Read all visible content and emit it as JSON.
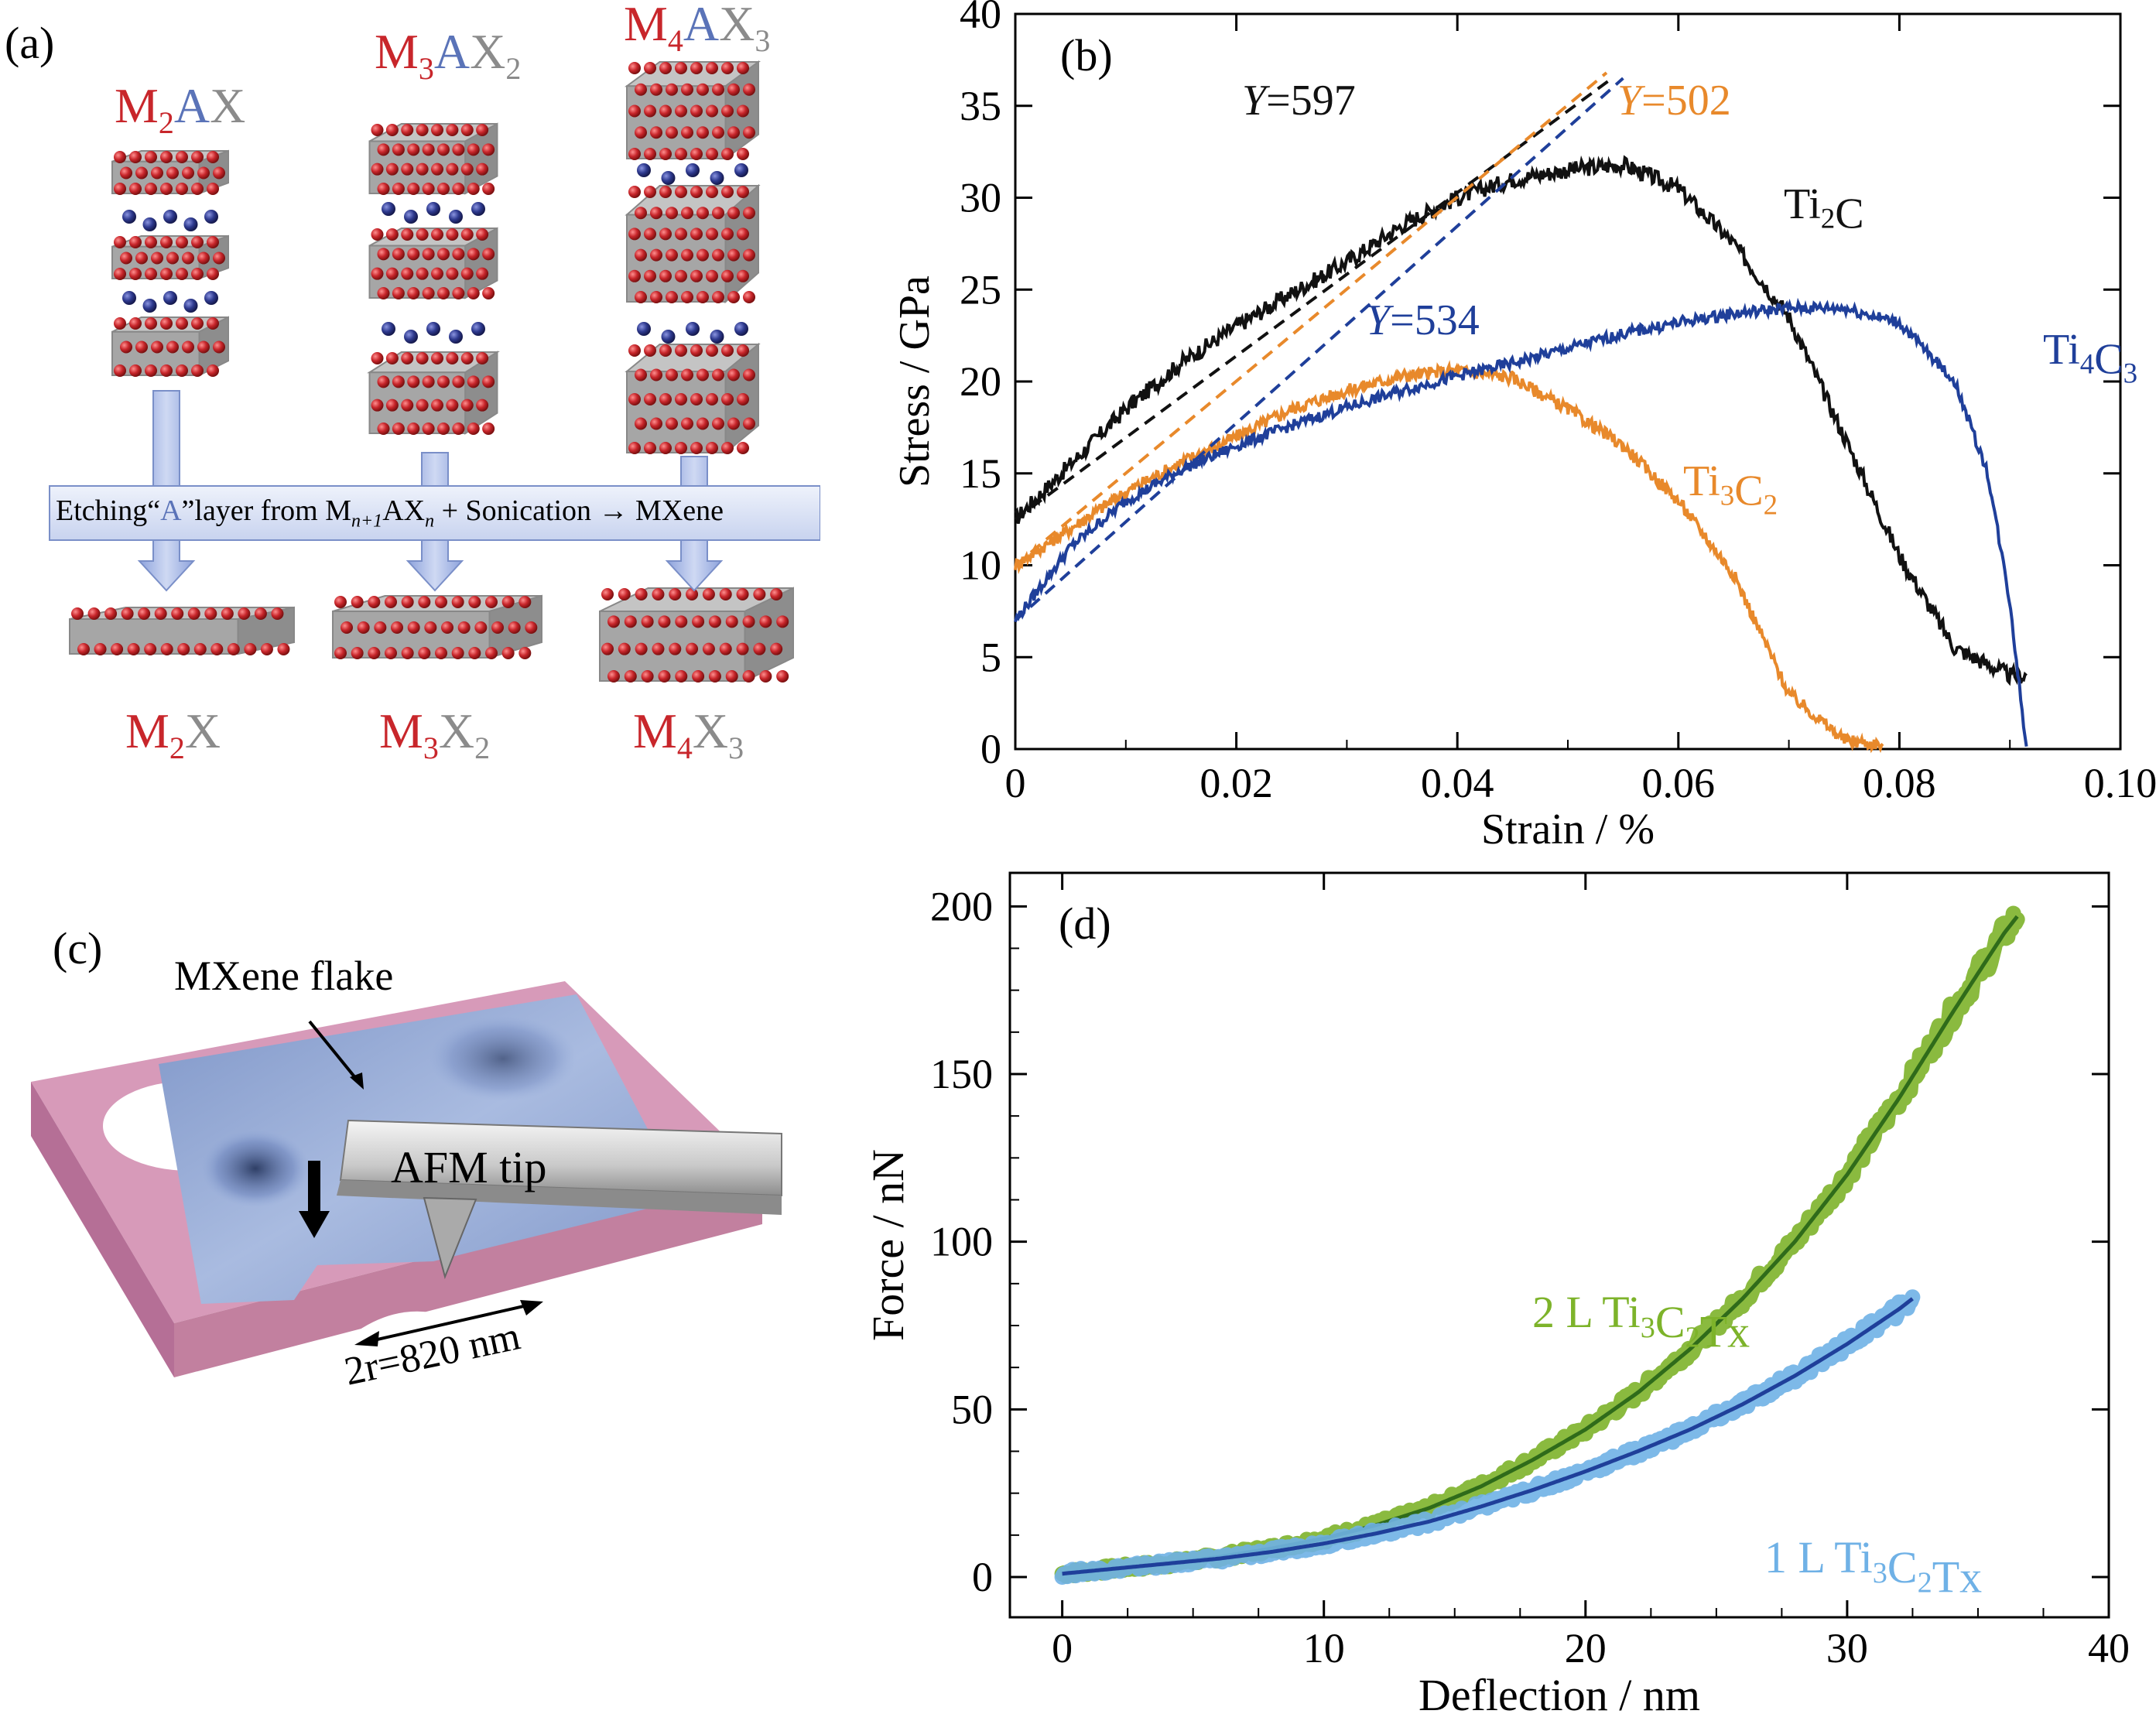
{
  "colors": {
    "atom_red": "#c8262b",
    "atom_blue": "#2e3a8f",
    "block_gray": "#9a9a9a",
    "arrow_fill": "#aabbe6",
    "black_series": "#111111",
    "orange_series": "#e8892b",
    "blue_series": "#1f3f9a",
    "green_series": "#7db32a",
    "lightblue_series": "#6fb1e6",
    "substrate_pink": "#d79ab9",
    "flake_blue": "#8ea6d6"
  },
  "panel_a": {
    "label": "(a)",
    "max_phases": [
      {
        "m": "M",
        "m_sub": "2",
        "a": "A",
        "x": "X",
        "x_sub": ""
      },
      {
        "m": "M",
        "m_sub": "3",
        "a": "A",
        "x": "X",
        "x_sub": "2"
      },
      {
        "m": "M",
        "m_sub": "4",
        "a": "A",
        "x": "X",
        "x_sub": "3"
      }
    ],
    "mxenes": [
      {
        "m": "M",
        "m_sub": "2",
        "x": "X",
        "x_sub": ""
      },
      {
        "m": "M",
        "m_sub": "3",
        "x": "X",
        "x_sub": "2"
      },
      {
        "m": "M",
        "m_sub": "4",
        "x": "X",
        "x_sub": "3"
      }
    ],
    "process": {
      "prefix": "Etching“",
      "a_letter": "A",
      "middle": "”layer from M",
      "sub_n1": "n+1",
      "ax": "AX",
      "sub_n": "n",
      "suffix": " + Sonication → MXene"
    }
  },
  "panel_b": {
    "label": "(b)",
    "annotations": {
      "black_y": "Y=597",
      "orange_y": "Y=502",
      "blue_y": "Y=534",
      "ti2c": "Ti2C",
      "ti3c2": "Ti3C2",
      "ti4c3": "Ti4C3"
    }
  },
  "panel_c": {
    "label": "(c)",
    "flake_label": "MXene flake",
    "tip_label": "AFM tip",
    "diameter_label": "2r=820 nm"
  },
  "panel_d": {
    "label": "(d)",
    "annotations": {
      "two_layer": "2 L Ti3C2Tx",
      "one_layer": "1 L Ti3C2Tx"
    }
  },
  "chart_data": [
    {
      "type": "line",
      "panel": "b",
      "xlabel": "Strain / %",
      "ylabel": "Stress / GPa",
      "xlim": [
        0,
        0.1
      ],
      "ylim": [
        0,
        40
      ],
      "xticks": [
        0,
        0.02,
        0.04,
        0.06,
        0.08,
        0.1
      ],
      "xtick_labels": [
        "0",
        "0.02",
        "0.04",
        "0.06",
        "0.08",
        "0.10"
      ],
      "yticks": [
        0,
        5,
        10,
        15,
        20,
        25,
        30,
        35,
        40
      ],
      "series": [
        {
          "name": "Ti2C",
          "color": "#111111",
          "noise": 0.45,
          "x": [
            0,
            0.005,
            0.01,
            0.015,
            0.02,
            0.025,
            0.03,
            0.035,
            0.04,
            0.045,
            0.05,
            0.055,
            0.06,
            0.065,
            0.07,
            0.075,
            0.08,
            0.085,
            0.09,
            0.0915
          ],
          "y": [
            12.5,
            15.5,
            18.5,
            21.0,
            23.0,
            24.8,
            26.5,
            28.5,
            30.0,
            31.0,
            31.5,
            31.8,
            30.5,
            27.5,
            23.5,
            17.0,
            10.5,
            5.5,
            4.0,
            4.0
          ]
        },
        {
          "name": "Ti3C2",
          "color": "#e8892b",
          "noise": 0.35,
          "x": [
            0,
            0.005,
            0.01,
            0.015,
            0.02,
            0.025,
            0.03,
            0.035,
            0.04,
            0.045,
            0.05,
            0.055,
            0.06,
            0.065,
            0.07,
            0.075,
            0.0785
          ],
          "y": [
            10.0,
            12.0,
            14.0,
            15.6,
            17.0,
            18.5,
            19.5,
            20.3,
            20.6,
            20.2,
            18.5,
            16.5,
            13.5,
            9.5,
            3.0,
            0.5,
            0.2
          ]
        },
        {
          "name": "Ti4C3",
          "color": "#1f3f9a",
          "noise": 0.3,
          "x": [
            0,
            0.005,
            0.01,
            0.015,
            0.02,
            0.025,
            0.03,
            0.035,
            0.04,
            0.045,
            0.05,
            0.055,
            0.06,
            0.065,
            0.07,
            0.075,
            0.08,
            0.085,
            0.088,
            0.09,
            0.0915
          ],
          "y": [
            7.0,
            11.0,
            13.5,
            15.2,
            16.5,
            17.6,
            18.6,
            19.5,
            20.3,
            21.0,
            21.8,
            22.6,
            23.2,
            23.7,
            24.0,
            24.0,
            23.2,
            20.0,
            15.0,
            8.0,
            0
          ]
        },
        {
          "name": "Y=597",
          "color": "#111111",
          "dashed": true,
          "x": [
            0,
            0.054
          ],
          "y": [
            12.5,
            36.5
          ]
        },
        {
          "name": "Y=502",
          "color": "#e8892b",
          "dashed": true,
          "x": [
            0,
            0.0535
          ],
          "y": [
            10.0,
            36.8
          ]
        },
        {
          "name": "Y=534",
          "color": "#1f3f9a",
          "dashed": true,
          "x": [
            0,
            0.055
          ],
          "y": [
            7.0,
            36.5
          ]
        }
      ]
    },
    {
      "type": "line",
      "panel": "d",
      "xlabel": "Deflection / nm",
      "ylabel": "Force / nN",
      "xlim": [
        -2,
        40
      ],
      "ylim": [
        -12,
        210
      ],
      "xticks": [
        0,
        10,
        20,
        30,
        40
      ],
      "yticks": [
        0,
        50,
        100,
        150,
        200
      ],
      "series": [
        {
          "name": "2 L Ti3C2Tx",
          "color": "#7db32a",
          "fit_color": "#2f6b1a",
          "x": [
            0,
            2,
            4,
            6,
            8,
            10,
            12,
            14,
            16,
            18,
            20,
            22,
            24,
            26,
            28,
            30,
            32,
            34,
            36,
            36.5
          ],
          "y": [
            1,
            2.5,
            4,
            6,
            8.5,
            11.5,
            15.5,
            20.5,
            27,
            35,
            44,
            55,
            68,
            83,
            100,
            120,
            143,
            168,
            192,
            197
          ]
        },
        {
          "name": "1 L Ti3C2Tx",
          "color": "#6fb1e6",
          "fit_color": "#1f3f9a",
          "x": [
            0,
            2,
            4,
            6,
            8,
            10,
            12,
            14,
            16,
            18,
            20,
            22,
            24,
            26,
            28,
            30,
            32,
            32.5
          ],
          "y": [
            1,
            2.5,
            4,
            5.5,
            7.5,
            10,
            13,
            16.5,
            21,
            26,
            31.5,
            37.5,
            44,
            51.5,
            60,
            69.5,
            80,
            83
          ]
        }
      ]
    }
  ]
}
